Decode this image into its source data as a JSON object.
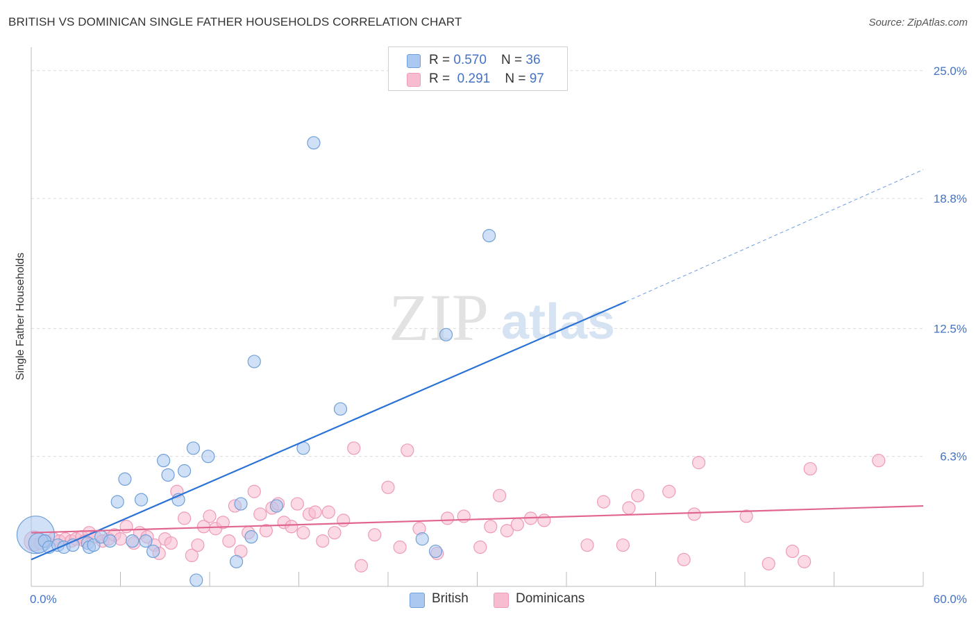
{
  "header": {
    "title": "BRITISH VS DOMINICAN SINGLE FATHER HOUSEHOLDS CORRELATION CHART",
    "source": "Source: ZipAtlas.com"
  },
  "watermark": {
    "zip": "ZIP",
    "atlas": "atlas"
  },
  "legend": {
    "british": {
      "r_label": "R = ",
      "r_value": "0.570",
      "n_label": "N = ",
      "n_value": "36"
    },
    "dominicans": {
      "r_label": "R = ",
      "r_value": "0.291",
      "n_label": "N = ",
      "n_value": "97"
    }
  },
  "colors": {
    "british_fill": "#aac8f0",
    "british_stroke": "#6f9fd8",
    "british_line": "#2b72d6",
    "dominican_fill": "#f8bcd0",
    "dominican_stroke": "#ee9ab8",
    "dominican_line": "#e0668f",
    "grid": "#d9d9d9",
    "axis_text": "#4472c4"
  },
  "chart_data": {
    "type": "scatter",
    "title": "BRITISH VS DOMINICAN SINGLE FATHER HOUSEHOLDS CORRELATION CHART",
    "xlabel": "",
    "ylabel": "Single Father Households",
    "xlim": [
      0,
      60
    ],
    "ylim": [
      0,
      25.8
    ],
    "x_tick_labels": [
      "0.0%",
      "60.0%"
    ],
    "y_ticks": [
      {
        "value": 6.3,
        "label": "6.3%"
      },
      {
        "value": 12.5,
        "label": "12.5%"
      },
      {
        "value": 18.8,
        "label": "18.8%"
      },
      {
        "value": 25.0,
        "label": "25.0%"
      }
    ],
    "grid": true,
    "legend_position": "top-center",
    "series": [
      {
        "name": "British",
        "regression": {
          "x_start": 0,
          "y_start": 1.3,
          "x_solid_end": 40,
          "y_solid_end": 13.8,
          "x_dash_end": 60,
          "y_dash_end": 20.2
        },
        "points": [
          [
            0.3,
            2.5,
            3
          ],
          [
            0.5,
            2.1,
            1.6
          ],
          [
            0.9,
            2.2,
            1
          ],
          [
            1.2,
            1.9,
            1
          ],
          [
            1.8,
            2.0,
            1
          ],
          [
            2.2,
            1.9,
            1
          ],
          [
            2.8,
            2.0,
            1
          ],
          [
            3.8,
            2.1,
            1
          ],
          [
            3.9,
            1.9,
            1
          ],
          [
            4.2,
            2.0,
            1
          ],
          [
            4.7,
            2.4,
            1
          ],
          [
            5.3,
            2.2,
            1
          ],
          [
            5.8,
            4.1,
            1
          ],
          [
            6.3,
            5.2,
            1
          ],
          [
            6.8,
            2.2,
            1
          ],
          [
            7.4,
            4.2,
            1
          ],
          [
            7.7,
            2.2,
            1
          ],
          [
            8.2,
            1.7,
            1
          ],
          [
            8.9,
            6.1,
            1
          ],
          [
            9.2,
            5.4,
            1
          ],
          [
            9.9,
            4.2,
            1
          ],
          [
            10.3,
            5.6,
            1
          ],
          [
            10.9,
            6.7,
            1
          ],
          [
            11.1,
            0.3,
            1
          ],
          [
            11.9,
            6.3,
            1
          ],
          [
            13.8,
            1.2,
            1
          ],
          [
            14.1,
            4.0,
            1
          ],
          [
            14.8,
            2.4,
            1
          ],
          [
            15.0,
            10.9,
            1
          ],
          [
            16.5,
            3.9,
            1
          ],
          [
            18.3,
            6.7,
            1
          ],
          [
            19.0,
            21.5,
            1
          ],
          [
            20.8,
            8.6,
            1
          ],
          [
            26.3,
            2.3,
            1
          ],
          [
            27.2,
            1.7,
            1
          ],
          [
            27.9,
            12.2,
            1
          ],
          [
            30.8,
            17.0,
            1
          ]
        ]
      },
      {
        "name": "Dominicans",
        "regression": {
          "x_start": 0,
          "y_start": 2.6,
          "x_end": 60,
          "y_end": 3.9
        },
        "points": [
          [
            0.2,
            2.2,
            1.6
          ],
          [
            0.6,
            2.1,
            1
          ],
          [
            1.0,
            2.2,
            1
          ],
          [
            1.5,
            2.3,
            1
          ],
          [
            1.9,
            2.2,
            1
          ],
          [
            2.3,
            2.3,
            1
          ],
          [
            2.7,
            2.2,
            1
          ],
          [
            3.0,
            2.3,
            1
          ],
          [
            3.4,
            2.4,
            1
          ],
          [
            3.6,
            2.2,
            1
          ],
          [
            3.9,
            2.6,
            1
          ],
          [
            4.3,
            2.4,
            1
          ],
          [
            4.8,
            2.2,
            1
          ],
          [
            5.2,
            2.3,
            1
          ],
          [
            5.6,
            2.5,
            1
          ],
          [
            6.0,
            2.3,
            1
          ],
          [
            6.4,
            2.9,
            1
          ],
          [
            6.9,
            2.1,
            1
          ],
          [
            7.3,
            2.6,
            1
          ],
          [
            7.8,
            2.4,
            1
          ],
          [
            8.3,
            2.0,
            1
          ],
          [
            8.6,
            1.6,
            1
          ],
          [
            9.0,
            2.3,
            1
          ],
          [
            9.4,
            2.1,
            1
          ],
          [
            9.8,
            4.6,
            1
          ],
          [
            10.3,
            3.3,
            1
          ],
          [
            10.8,
            1.5,
            1
          ],
          [
            11.2,
            2.0,
            1
          ],
          [
            11.6,
            2.9,
            1
          ],
          [
            12.0,
            3.4,
            1
          ],
          [
            12.4,
            2.8,
            1
          ],
          [
            12.9,
            3.1,
            1
          ],
          [
            13.3,
            2.2,
            1
          ],
          [
            13.7,
            3.9,
            1
          ],
          [
            14.1,
            1.7,
            1
          ],
          [
            14.6,
            2.6,
            1
          ],
          [
            15.0,
            4.6,
            1
          ],
          [
            15.4,
            3.5,
            1
          ],
          [
            15.8,
            2.7,
            1
          ],
          [
            16.2,
            3.8,
            1
          ],
          [
            16.6,
            4.0,
            1
          ],
          [
            17.0,
            3.1,
            1
          ],
          [
            17.5,
            2.9,
            1
          ],
          [
            17.9,
            4.0,
            1
          ],
          [
            18.3,
            2.6,
            1
          ],
          [
            18.7,
            3.5,
            1
          ],
          [
            19.1,
            3.6,
            1
          ],
          [
            19.6,
            2.2,
            1
          ],
          [
            20.0,
            3.6,
            1
          ],
          [
            20.4,
            2.6,
            1
          ],
          [
            21.0,
            3.2,
            1
          ],
          [
            21.7,
            6.7,
            1
          ],
          [
            22.2,
            1.0,
            1
          ],
          [
            23.1,
            2.5,
            1
          ],
          [
            24.0,
            4.8,
            1
          ],
          [
            24.8,
            1.9,
            1
          ],
          [
            25.3,
            6.6,
            1
          ],
          [
            26.1,
            2.8,
            1
          ],
          [
            27.3,
            1.6,
            1
          ],
          [
            28.0,
            3.3,
            1
          ],
          [
            29.1,
            3.4,
            1
          ],
          [
            30.2,
            1.9,
            1
          ],
          [
            30.9,
            2.9,
            1
          ],
          [
            31.5,
            4.4,
            1
          ],
          [
            32.0,
            2.7,
            1
          ],
          [
            32.7,
            3.0,
            1
          ],
          [
            33.6,
            3.3,
            1
          ],
          [
            34.5,
            3.2,
            1
          ],
          [
            37.4,
            2.0,
            1
          ],
          [
            38.5,
            4.1,
            1
          ],
          [
            39.8,
            2.0,
            1
          ],
          [
            40.2,
            3.8,
            1
          ],
          [
            40.8,
            4.4,
            1
          ],
          [
            42.9,
            4.6,
            1
          ],
          [
            43.9,
            1.3,
            1
          ],
          [
            44.6,
            3.5,
            1
          ],
          [
            44.9,
            6.0,
            1
          ],
          [
            48.1,
            3.4,
            1
          ],
          [
            49.6,
            1.1,
            1
          ],
          [
            51.2,
            1.7,
            1
          ],
          [
            52.0,
            1.2,
            1
          ],
          [
            52.4,
            5.7,
            1
          ],
          [
            57.0,
            6.1,
            1
          ]
        ]
      }
    ]
  },
  "bottom_legend": {
    "british": "British",
    "dominicans": "Dominicans"
  }
}
